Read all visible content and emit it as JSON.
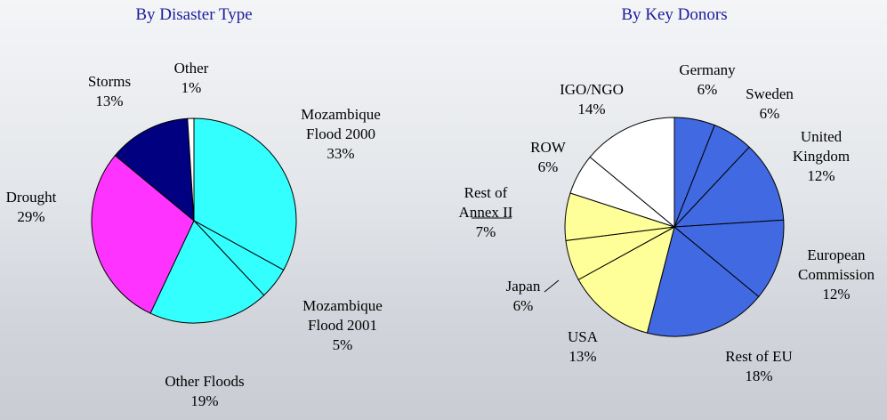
{
  "chart_data": [
    {
      "type": "pie",
      "title": "By Disaster Type",
      "categories": [
        "Mozambique Flood 2000",
        "Mozambique Flood 2001",
        "Other Floods",
        "Drought",
        "Storms",
        "Other"
      ],
      "values": [
        33,
        5,
        19,
        29,
        13,
        1
      ],
      "value_labels": [
        "33%",
        "5%",
        "19%",
        "29%",
        "13%",
        "1%"
      ],
      "colors": [
        "#33ffff",
        "#33ffff",
        "#33ffff",
        "#ff33ff",
        "#000080",
        "#ffffff"
      ]
    },
    {
      "type": "pie",
      "title": "By Key Donors",
      "categories": [
        "Germany",
        "Sweden",
        "United Kingdom",
        "European Commission",
        "Rest of EU",
        "USA",
        "Japan",
        "Rest of Annex II",
        "ROW",
        "IGO/NGO"
      ],
      "values": [
        6,
        6,
        12,
        12,
        18,
        13,
        6,
        7,
        6,
        14
      ],
      "value_labels": [
        "6%",
        "6%",
        "12%",
        "12%",
        "18%",
        "13%",
        "6%",
        "7%",
        "6%",
        "14%"
      ],
      "colors": [
        "#4169e1",
        "#4169e1",
        "#4169e1",
        "#4169e1",
        "#4169e1",
        "#ffff99",
        "#ffff99",
        "#ffff99",
        "#ffffff",
        "#ffffff"
      ]
    }
  ]
}
